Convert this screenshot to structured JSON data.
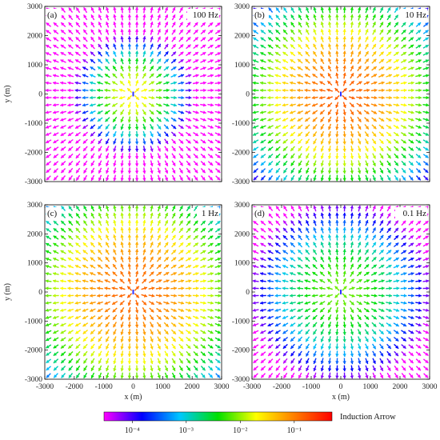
{
  "chart_data": {
    "type": "vector-field",
    "panels": [
      {
        "label": "(a)",
        "freq": "100 Hz",
        "xlim": [
          -3000,
          3000
        ],
        "ylim": [
          -3000,
          3000
        ],
        "xticks": [
          "-3000",
          "-2000",
          "-1000",
          "0",
          "1000",
          "2000",
          "3000"
        ],
        "yticks": [
          "3000",
          "2000",
          "1000",
          "0",
          "-1000",
          "-2000",
          "-3000"
        ],
        "ylabel": "y (m)",
        "xlabel": "",
        "peak_log10": -1.6,
        "spread_m": 900
      },
      {
        "label": "(b)",
        "freq": "10 Hz",
        "xlim": [
          -3000,
          3000
        ],
        "ylim": [
          -3000,
          3000
        ],
        "xticks": [
          "-3000",
          "-2000",
          "-1000",
          "0",
          "1000",
          "2000",
          "3000"
        ],
        "yticks": [
          "3000",
          "2000",
          "1000",
          "0",
          "-1000",
          "-2000",
          "-3000"
        ],
        "ylabel": "",
        "xlabel": "",
        "peak_log10": -0.8,
        "spread_m": 1700
      },
      {
        "label": "(c)",
        "freq": "1 Hz",
        "xlim": [
          -3000,
          3000
        ],
        "ylim": [
          -3000,
          3000
        ],
        "xticks": [
          "-3000",
          "-2000",
          "-1000",
          "0",
          "1000",
          "2000",
          "3000"
        ],
        "yticks": [
          "3000",
          "2000",
          "1000",
          "0",
          "-1000",
          "-2000",
          "-3000"
        ],
        "ylabel": "y (m)",
        "xlabel": "x (m)",
        "peak_log10": -0.85,
        "spread_m": 1900
      },
      {
        "label": "(d)",
        "freq": "0.1 Hz",
        "xlim": [
          -3000,
          3000
        ],
        "ylim": [
          -3000,
          3000
        ],
        "xticks": [
          "-3000",
          "-2000",
          "-1000",
          "0",
          "1000",
          "2000",
          "3000"
        ],
        "yticks": [
          "3000",
          "2000",
          "1000",
          "0",
          "-1000",
          "-2000",
          "-3000"
        ],
        "ylabel": "",
        "xlabel": "x (m)",
        "peak_log10": -2.1,
        "spread_m": 1500
      }
    ],
    "grid_step_m": 250,
    "colorbar": {
      "title": "Induction Arrow",
      "scale": "log",
      "range": [
        3e-05,
        0.5
      ],
      "ticks": [
        {
          "value": 0.0001,
          "label": "10⁻⁴"
        },
        {
          "value": 0.001,
          "label": "10⁻³"
        },
        {
          "value": 0.01,
          "label": "10⁻²"
        },
        {
          "value": 0.1,
          "label": "10⁻¹"
        }
      ],
      "colors": [
        "#ff00ff",
        "#0000ff",
        "#00c8ff",
        "#00e000",
        "#ffff00",
        "#ff7f00",
        "#ff0000"
      ]
    }
  }
}
